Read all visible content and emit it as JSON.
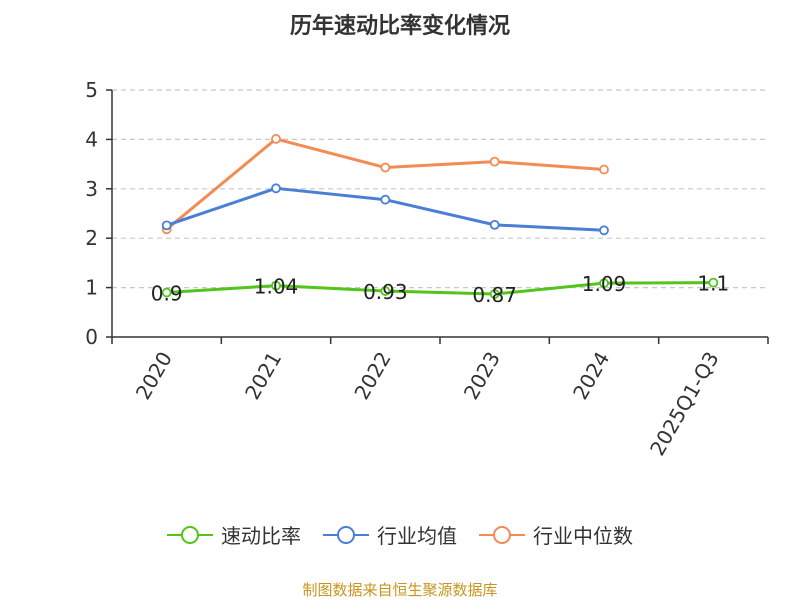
{
  "chart_data": {
    "type": "line",
    "title": "历年速动比率变化情况",
    "categories": [
      "2020",
      "2021",
      "2022",
      "2023",
      "2024",
      "2025Q1-Q3"
    ],
    "ylim": [
      0,
      5
    ],
    "yticks": [
      "0",
      "1",
      "2",
      "3",
      "4",
      "5"
    ],
    "series": [
      {
        "name": "速动比率",
        "color": "#52c41a",
        "values": [
          0.9,
          1.04,
          0.93,
          0.87,
          1.09,
          1.1
        ],
        "labels": [
          "0.9",
          "1.04",
          "0.93",
          "0.87",
          "1.09",
          "1.1"
        ]
      },
      {
        "name": "行业均值",
        "color": "#4a7fd6",
        "values": [
          2.26,
          3.01,
          2.78,
          2.27,
          2.16,
          null
        ]
      },
      {
        "name": "行业中位数",
        "color": "#f28b54",
        "values": [
          2.18,
          4.01,
          3.43,
          3.55,
          3.39,
          null
        ]
      }
    ],
    "grid": "dashed horizontal",
    "legend_position": "bottom"
  },
  "source_text": "制图数据来自恒生聚源数据库"
}
